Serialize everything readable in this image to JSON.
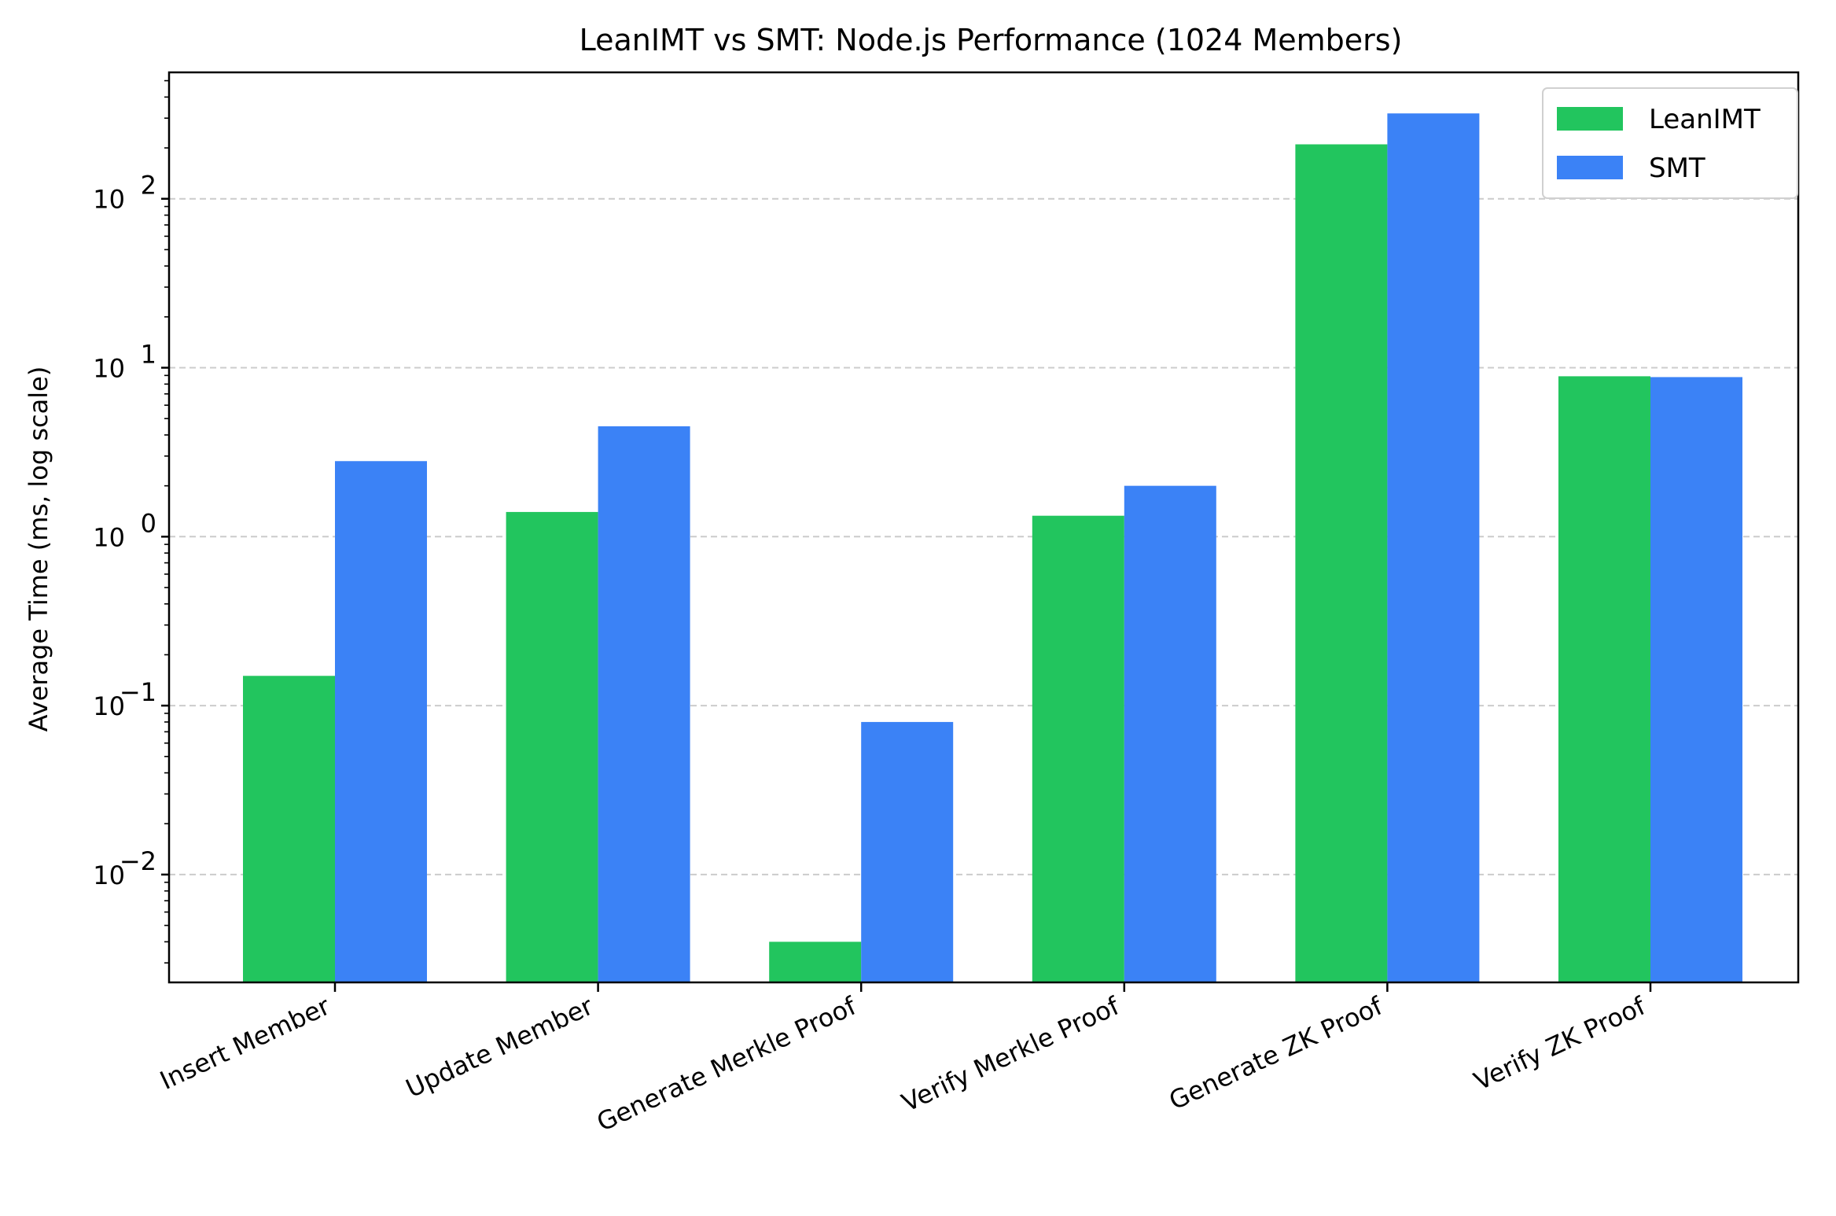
{
  "chart_data": {
    "type": "bar",
    "title": "LeanIMT vs SMT: Node.js Performance (1024 Members)",
    "xlabel": "",
    "ylabel": "Average Time (ms, log scale)",
    "yscale": "log",
    "ylim": [
      0.0023,
      560
    ],
    "grid": "y-major, dashed",
    "legend": "top-right",
    "categories": [
      "Insert Member",
      "Update Member",
      "Generate Merkle Proof",
      "Verify Merkle Proof",
      "Generate ZK Proof",
      "Verify ZK Proof"
    ],
    "series": [
      {
        "name": "LeanIMT",
        "color": "#22c55e",
        "values": [
          0.15,
          1.4,
          0.004,
          1.33,
          210,
          8.9
        ]
      },
      {
        "name": "SMT",
        "color": "#3b82f6",
        "values": [
          2.8,
          4.5,
          0.08,
          2.0,
          320,
          8.8
        ]
      }
    ],
    "yticks": [
      {
        "value": 0.01,
        "base": "10",
        "exp": "−2"
      },
      {
        "value": 0.1,
        "base": "10",
        "exp": "−1"
      },
      {
        "value": 1,
        "base": "10",
        "exp": "0"
      },
      {
        "value": 10,
        "base": "10",
        "exp": "1"
      },
      {
        "value": 100,
        "base": "10",
        "exp": "2"
      }
    ]
  }
}
